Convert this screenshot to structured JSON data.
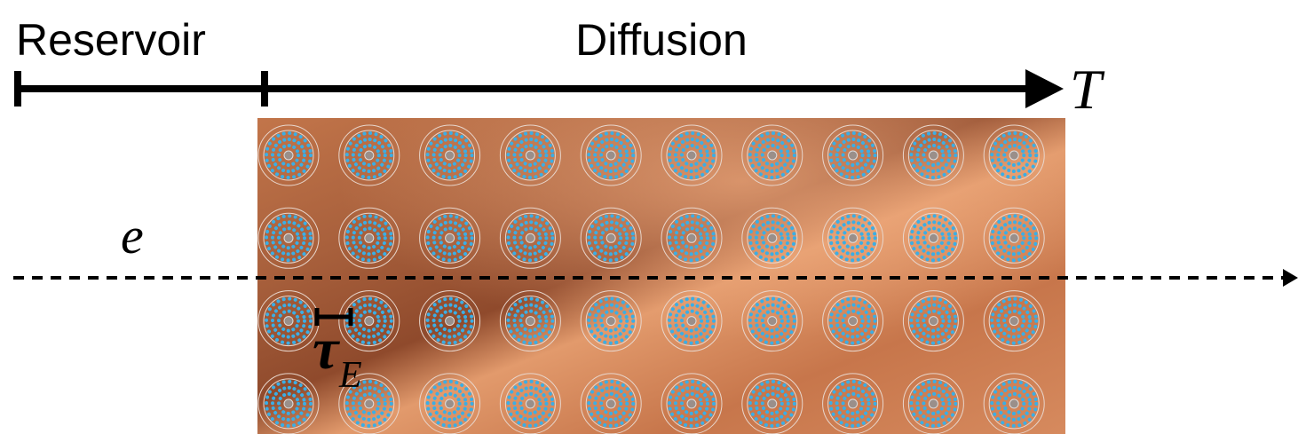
{
  "labels": {
    "reservoir": "Reservoir",
    "diffusion": "Diffusion",
    "time": "T",
    "electron": "e",
    "tau": "τ",
    "tau_sub": "E"
  }
}
